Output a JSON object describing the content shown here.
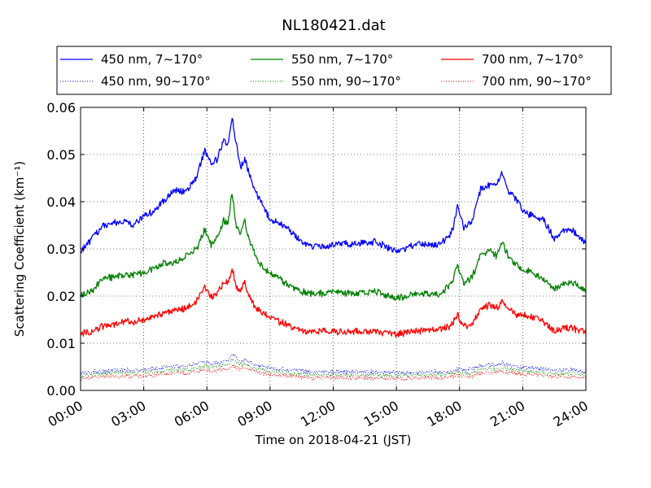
{
  "chart_data": {
    "type": "line",
    "title": "NL180421.dat",
    "xlabel": "Time on 2018-04-21 (JST)",
    "ylabel": "Scattering Coefficient (km⁻¹)",
    "x_unit": "hour of day (JST)",
    "xlim": [
      0,
      24
    ],
    "ylim": [
      0,
      0.06
    ],
    "grid": true,
    "legend_position": "top, above plot",
    "x_tick_labels": [
      "00:00",
      "03:00",
      "06:00",
      "09:00",
      "12:00",
      "15:00",
      "18:00",
      "21:00",
      "24:00"
    ],
    "x_tick_values": [
      0,
      3,
      6,
      9,
      12,
      15,
      18,
      21,
      24
    ],
    "y_tick_labels": [
      "0.00",
      "0.01",
      "0.02",
      "0.03",
      "0.04",
      "0.05",
      "0.06"
    ],
    "y_tick_values": [
      0,
      0.01,
      0.02,
      0.03,
      0.04,
      0.05,
      0.06
    ],
    "x": [
      0,
      0.5,
      1,
      1.5,
      2,
      2.5,
      3,
      3.5,
      4,
      4.5,
      5,
      5.5,
      5.9,
      6.2,
      6.5,
      6.8,
      7,
      7.2,
      7.4,
      7.6,
      7.8,
      8,
      8.3,
      8.6,
      9,
      9.5,
      10,
      10.5,
      11,
      11.5,
      12,
      13,
      14,
      15,
      16,
      17,
      17.5,
      17.7,
      17.9,
      18.2,
      18.6,
      19,
      19.4,
      19.8,
      20,
      20.3,
      20.7,
      21,
      21.5,
      22,
      22.5,
      23,
      23.5,
      24
    ],
    "series": [
      {
        "name": "450 nm, 7∼170°",
        "color": "#0000ff",
        "style": "solid",
        "values": [
          0.0295,
          0.032,
          0.0345,
          0.0355,
          0.036,
          0.035,
          0.037,
          0.038,
          0.0405,
          0.0425,
          0.042,
          0.045,
          0.051,
          0.048,
          0.049,
          0.053,
          0.052,
          0.058,
          0.052,
          0.0475,
          0.049,
          0.046,
          0.042,
          0.04,
          0.036,
          0.0355,
          0.0335,
          0.0315,
          0.0305,
          0.0305,
          0.031,
          0.031,
          0.0315,
          0.0295,
          0.031,
          0.031,
          0.0325,
          0.0345,
          0.039,
          0.0345,
          0.036,
          0.0425,
          0.0435,
          0.044,
          0.0465,
          0.0425,
          0.0405,
          0.038,
          0.037,
          0.036,
          0.032,
          0.034,
          0.0335,
          0.031
        ]
      },
      {
        "name": "550 nm, 7∼170°",
        "color": "#008000",
        "style": "solid",
        "values": [
          0.02,
          0.021,
          0.0235,
          0.024,
          0.0245,
          0.0245,
          0.025,
          0.026,
          0.027,
          0.027,
          0.0285,
          0.03,
          0.034,
          0.031,
          0.0325,
          0.036,
          0.0355,
          0.042,
          0.0345,
          0.0335,
          0.036,
          0.032,
          0.0285,
          0.0265,
          0.025,
          0.0235,
          0.022,
          0.021,
          0.0205,
          0.0205,
          0.021,
          0.0205,
          0.021,
          0.0195,
          0.0205,
          0.0205,
          0.022,
          0.0235,
          0.0265,
          0.0225,
          0.024,
          0.0285,
          0.0295,
          0.0285,
          0.0315,
          0.0285,
          0.0265,
          0.0255,
          0.025,
          0.0235,
          0.0215,
          0.023,
          0.0225,
          0.021
        ]
      },
      {
        "name": "700 nm, 7∼170°",
        "color": "#ff0000",
        "style": "solid",
        "values": [
          0.012,
          0.0125,
          0.0135,
          0.014,
          0.0145,
          0.0145,
          0.015,
          0.0155,
          0.0165,
          0.017,
          0.0175,
          0.019,
          0.022,
          0.0195,
          0.0205,
          0.023,
          0.023,
          0.026,
          0.022,
          0.021,
          0.023,
          0.02,
          0.0175,
          0.0165,
          0.0155,
          0.0145,
          0.0135,
          0.0125,
          0.0125,
          0.0125,
          0.0125,
          0.0125,
          0.0125,
          0.012,
          0.0125,
          0.013,
          0.0135,
          0.0145,
          0.016,
          0.0135,
          0.014,
          0.017,
          0.018,
          0.0175,
          0.019,
          0.0175,
          0.016,
          0.016,
          0.0155,
          0.0145,
          0.0125,
          0.0135,
          0.013,
          0.0125
        ]
      },
      {
        "name": "450 nm, 90∼170°",
        "color": "#0000ff",
        "style": "dotted",
        "values": [
          0.0037,
          0.0039,
          0.0041,
          0.0042,
          0.0043,
          0.0043,
          0.0044,
          0.0046,
          0.0049,
          0.0052,
          0.0052,
          0.0055,
          0.006,
          0.0057,
          0.0058,
          0.0062,
          0.0062,
          0.0079,
          0.0069,
          0.0064,
          0.0066,
          0.006,
          0.0055,
          0.0052,
          0.0047,
          0.0045,
          0.0043,
          0.0041,
          0.004,
          0.004,
          0.004,
          0.0039,
          0.0039,
          0.0037,
          0.0038,
          0.0039,
          0.004,
          0.0043,
          0.0047,
          0.0043,
          0.0045,
          0.0052,
          0.0055,
          0.0055,
          0.0058,
          0.0054,
          0.0051,
          0.0049,
          0.0048,
          0.0046,
          0.0042,
          0.0044,
          0.0043,
          0.004
        ]
      },
      {
        "name": "550 nm, 90∼170°",
        "color": "#008000",
        "style": "dotted",
        "values": [
          0.0031,
          0.0033,
          0.0035,
          0.0036,
          0.0037,
          0.0037,
          0.0038,
          0.004,
          0.0042,
          0.0044,
          0.0044,
          0.0047,
          0.0052,
          0.0049,
          0.005,
          0.0054,
          0.0054,
          0.0066,
          0.0059,
          0.0055,
          0.0057,
          0.0052,
          0.0047,
          0.0044,
          0.004,
          0.0038,
          0.0036,
          0.0034,
          0.0033,
          0.0033,
          0.0033,
          0.0032,
          0.0032,
          0.0031,
          0.0032,
          0.0033,
          0.0034,
          0.0036,
          0.004,
          0.0036,
          0.0038,
          0.0044,
          0.0046,
          0.0046,
          0.0049,
          0.0045,
          0.0043,
          0.0041,
          0.004,
          0.0038,
          0.0035,
          0.0037,
          0.0036,
          0.0034
        ]
      },
      {
        "name": "700 nm, 90∼170°",
        "color": "#ff0000",
        "style": "dotted",
        "values": [
          0.0025,
          0.0027,
          0.0029,
          0.003,
          0.003,
          0.003,
          0.0031,
          0.0033,
          0.0035,
          0.0037,
          0.0037,
          0.0039,
          0.0044,
          0.0041,
          0.0042,
          0.0046,
          0.0046,
          0.0054,
          0.0049,
          0.0046,
          0.0048,
          0.0043,
          0.0039,
          0.0037,
          0.0033,
          0.0031,
          0.003,
          0.0028,
          0.0027,
          0.0027,
          0.0027,
          0.0026,
          0.0026,
          0.0025,
          0.0026,
          0.0027,
          0.0028,
          0.003,
          0.0033,
          0.003,
          0.0031,
          0.0036,
          0.0038,
          0.0038,
          0.004,
          0.0037,
          0.0035,
          0.0034,
          0.0033,
          0.0031,
          0.0029,
          0.003,
          0.0029,
          0.0028
        ]
      }
    ]
  }
}
